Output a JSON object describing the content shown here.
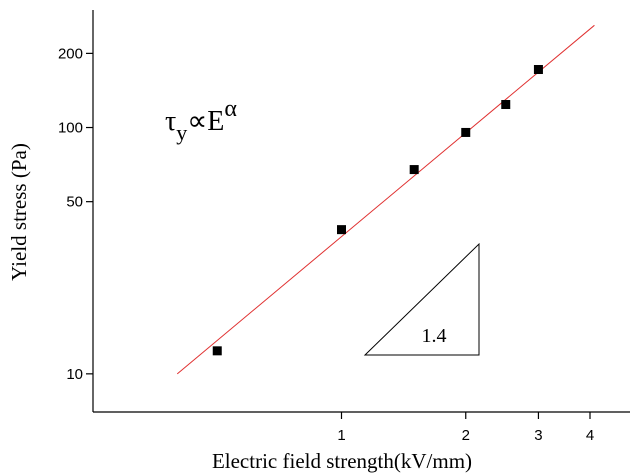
{
  "chart_data": {
    "type": "scatter",
    "x_label": "Electric field strength(kV/mm)",
    "y_label": "Yield stress (Pa)",
    "x": [
      0.5,
      1,
      1.5,
      2,
      2.5,
      3
    ],
    "values": [
      12.4,
      38.5,
      67.5,
      95.5,
      124,
      172
    ],
    "color": "#000000",
    "fit_line": {
      "x": [
        0.4,
        4.1
      ],
      "values": [
        10,
        260
      ],
      "color": "#e03030"
    },
    "xlim": [
      0.25,
      5
    ],
    "ylim": [
      7,
      300
    ],
    "xticks": [
      1,
      2,
      3,
      4
    ],
    "yticks": [
      10,
      50,
      100,
      200
    ],
    "log_x": true,
    "log_y": true,
    "formula": {
      "base": "τ",
      "sub": "y",
      "mid": "∝E",
      "sup": "α"
    },
    "slope_label": "1.4"
  }
}
